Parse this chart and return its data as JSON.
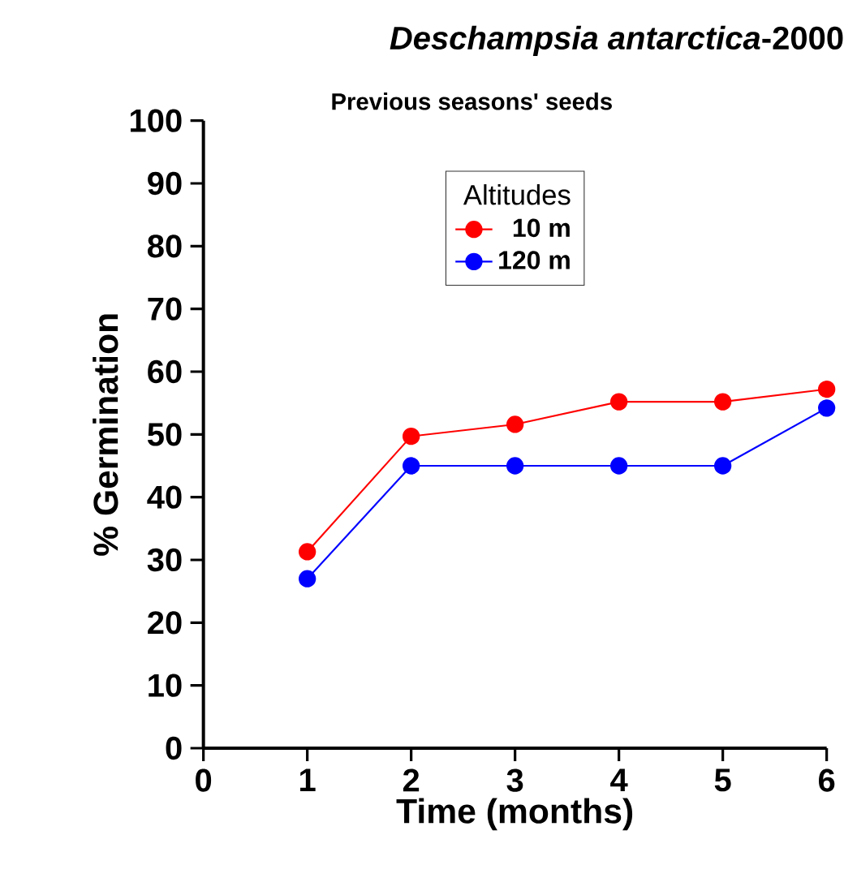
{
  "chart_data": {
    "type": "line",
    "title": "*Deschampsia antarctica*-2000",
    "subtitle": "Previous seasons' seeds",
    "xlabel": "Time (months)",
    "ylabel": "% Germination",
    "legend_title": "Altitudes",
    "x": [
      1,
      2,
      3,
      4,
      5,
      6
    ],
    "series": [
      {
        "name": "10 m",
        "color": "#ff0000",
        "values": [
          31.3,
          49.7,
          51.6,
          55.2,
          55.2,
          57.2
        ]
      },
      {
        "name": "120 m",
        "color": "#0000ff",
        "values": [
          27,
          45,
          45,
          45,
          45,
          54.2
        ]
      }
    ],
    "xlim": [
      0,
      6
    ],
    "xticks": [
      0,
      1,
      2,
      3,
      4,
      5,
      6
    ],
    "ylim": [
      0,
      100
    ],
    "yticks": [
      0,
      10,
      20,
      30,
      40,
      50,
      60,
      70,
      80,
      90,
      100
    ],
    "grid": false,
    "legend": "top",
    "marker": "circle",
    "line_style": "solid"
  }
}
